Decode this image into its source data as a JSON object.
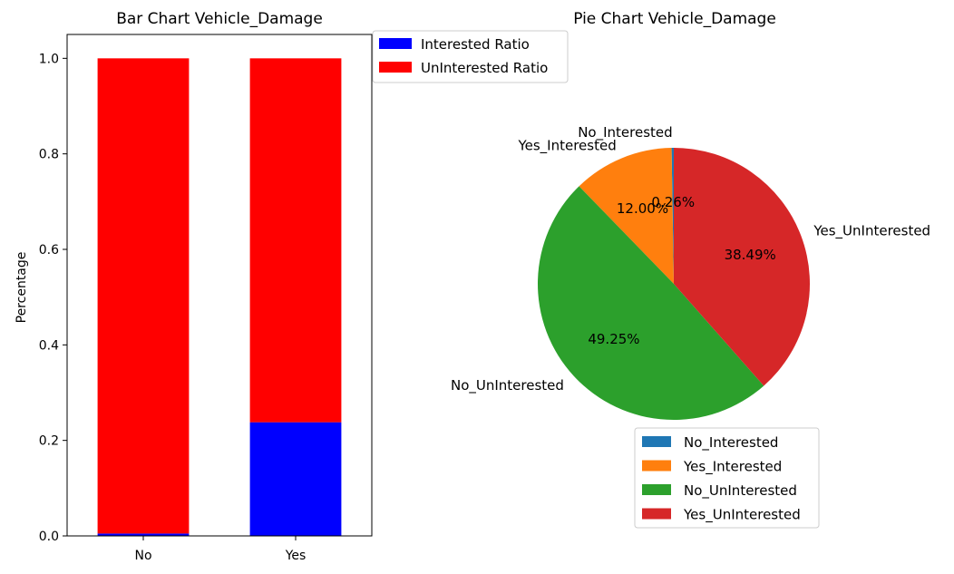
{
  "chart_data": [
    {
      "type": "bar",
      "stacked": true,
      "title": "Bar Chart Vehicle_Damage",
      "xlabel": "",
      "ylabel": "Percentage",
      "categories": [
        "No",
        "Yes"
      ],
      "ylim": [
        0,
        1.05
      ],
      "yticks": [
        "0.0",
        "0.2",
        "0.4",
        "0.6",
        "0.8",
        "1.0"
      ],
      "grid": false,
      "legend_position": "outside-top-right",
      "series": [
        {
          "name": "Interested Ratio",
          "color": "#0000ff",
          "values": [
            0.005,
            0.238
          ]
        },
        {
          "name": "UnInterested Ratio",
          "color": "#ff0000",
          "values": [
            0.995,
            0.762
          ]
        }
      ]
    },
    {
      "type": "pie",
      "title": "Pie Chart Vehicle_Damage",
      "legend_position": "bottom",
      "slices": [
        {
          "label": "No_Interested",
          "value": 0.26,
          "pct_label": "0.26%",
          "color": "#1f77b4"
        },
        {
          "label": "Yes_Interested",
          "value": 12.0,
          "pct_label": "12.00%",
          "color": "#ff7f0e"
        },
        {
          "label": "No_UnInterested",
          "value": 49.25,
          "pct_label": "49.25%",
          "color": "#2ca02c"
        },
        {
          "label": "Yes_UnInterested",
          "value": 38.49,
          "pct_label": "38.49%",
          "color": "#d62728"
        }
      ]
    }
  ]
}
